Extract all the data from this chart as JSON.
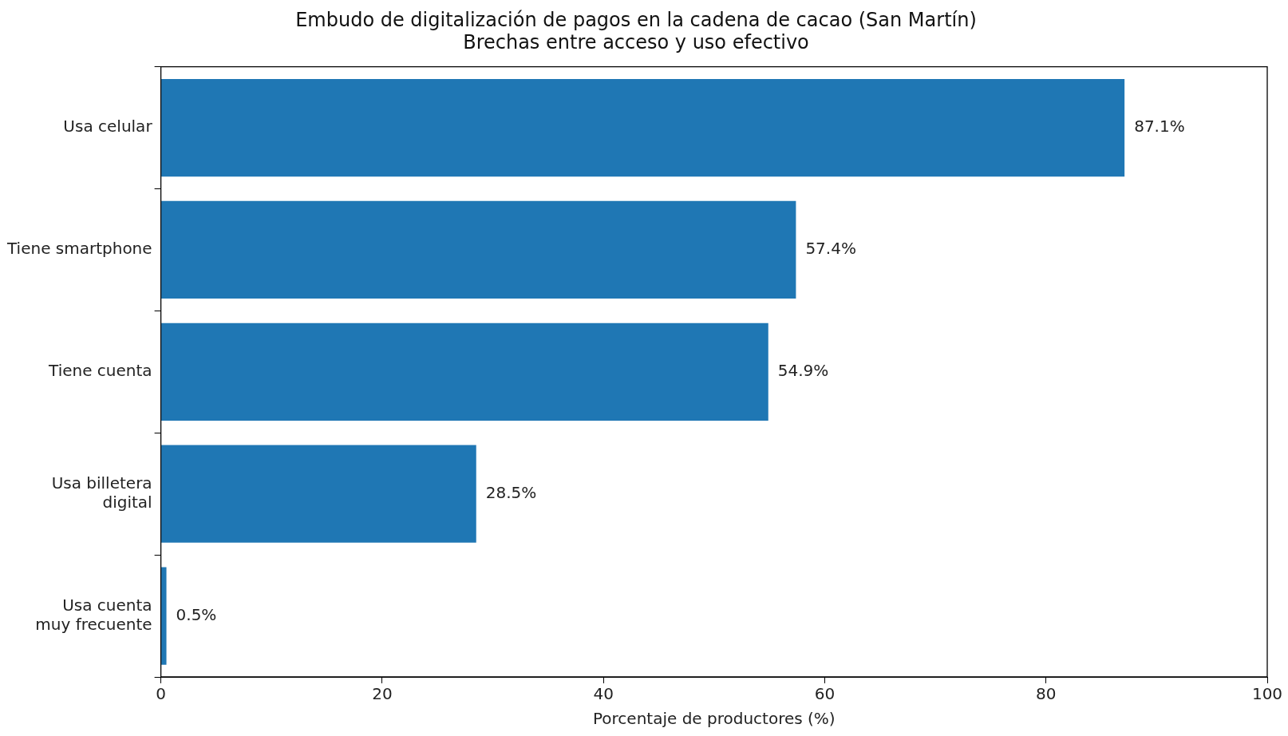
{
  "chart_data": {
    "type": "bar",
    "orientation": "horizontal",
    "title": "Embudo de digitalización de pagos en la cadena de cacao (San Martín)",
    "subtitle": "Brechas entre acceso y uso efectivo",
    "xlabel": "Porcentaje de productores (%)",
    "categories": [
      "Usa celular",
      "Tiene smartphone",
      "Tiene cuenta",
      "Usa billetera\ndigital",
      "Usa cuenta\nmuy frecuente"
    ],
    "values": [
      87.1,
      57.4,
      54.9,
      28.5,
      0.5
    ],
    "value_labels": [
      "87.1%",
      "57.4%",
      "54.9%",
      "28.5%",
      "0.5%"
    ],
    "color": "#1f77b4",
    "xlim": [
      0,
      100
    ],
    "xticks": [
      0,
      20,
      40,
      60,
      80,
      100
    ],
    "grid": false,
    "legend": false
  }
}
